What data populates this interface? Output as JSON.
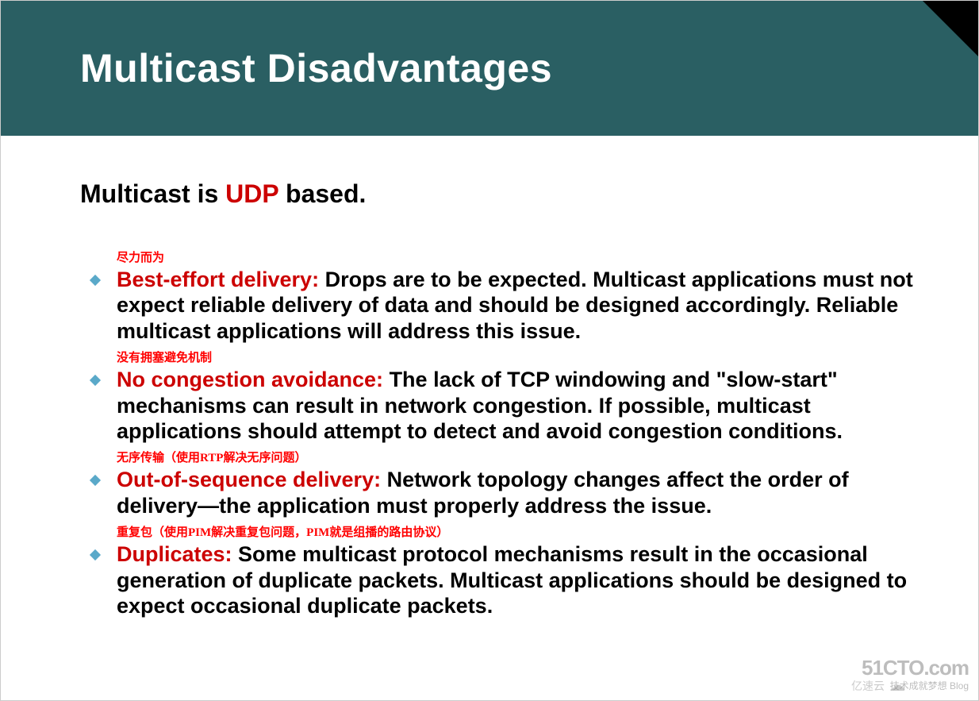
{
  "slide": {
    "title": "Multicast Disadvantages",
    "subtitle_pre": "Multicast is ",
    "subtitle_udp": "UDP",
    "subtitle_post": " based.",
    "colors": {
      "title_band_bg": "#2a5f63",
      "title_text": "#ffffff",
      "accent_red": "#cc0000",
      "anno_red": "#ff0000",
      "bullet_diamond": "#5aa9c9",
      "body_text": "#000000",
      "corner": "#000000",
      "background": "#ffffff"
    },
    "bullets": [
      {
        "anno": "尽力而为",
        "lead": "Best-effort delivery: ",
        "body": "Drops are to be expected. Multicast applications must not expect reliable delivery of data and should be designed accordingly. Reliable multicast applications will address this issue."
      },
      {
        "anno": "没有拥塞避免机制",
        "lead": "No congestion avoidance: ",
        "body": "The lack of TCP windowing and \"slow-start\" mechanisms can result in network congestion. If possible, multicast applications should attempt to detect and avoid congestion conditions."
      },
      {
        "anno": "无序传输（使用RTP解决无序问题）",
        "lead": "Out-of-sequence delivery: ",
        "body": "Network topology changes affect the order of delivery—the application must properly address the issue."
      },
      {
        "anno": "重复包（使用PIM解决重复包问题，PIM就是组播的路由协议）",
        "lead": "Duplicates: ",
        "body": "Some multicast protocol mechanisms result in the occasional generation of duplicate packets. Multicast applications should be designed to expect occasional duplicate packets."
      }
    ],
    "watermark": {
      "main": "51CTO.com",
      "sub": "技术成就梦想  Blog",
      "yisu": "亿速云",
      "cloud_glyph": "☁"
    }
  }
}
